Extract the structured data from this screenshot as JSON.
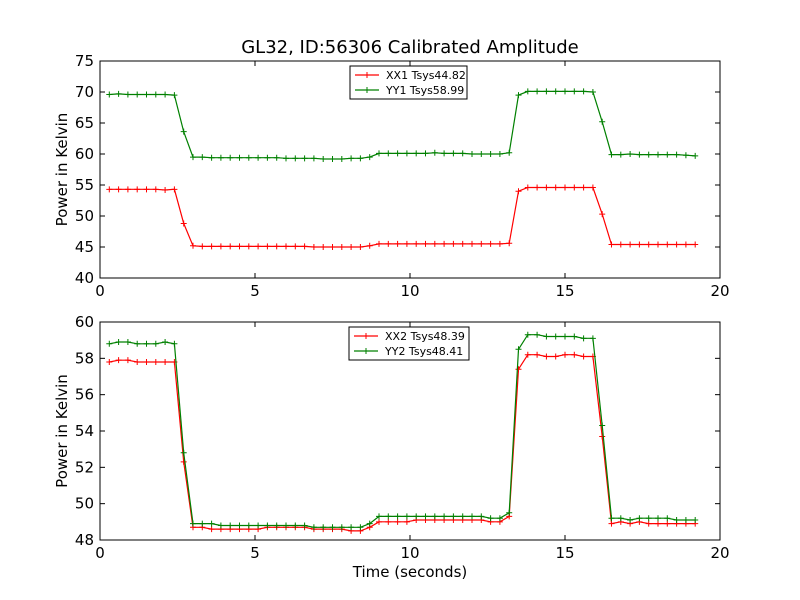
{
  "title": "GL32, ID:56306 Calibrated Amplitude",
  "colors": {
    "red": "#ff0000",
    "green": "#008000"
  },
  "chart_data": [
    {
      "type": "line",
      "xlabel": "",
      "ylabel": "Power in Kelvin",
      "xlim": [
        0,
        20
      ],
      "ylim": [
        40,
        75
      ],
      "xticks": [
        "0",
        "5",
        "10",
        "15",
        "20"
      ],
      "yticks": [
        "40",
        "45",
        "50",
        "55",
        "60",
        "65",
        "70",
        "75"
      ],
      "legend_position": "upper-center",
      "grid": false,
      "x": [
        0.3,
        0.6,
        0.9,
        1.2,
        1.5,
        1.8,
        2.1,
        2.4,
        2.7,
        3.0,
        3.3,
        3.6,
        3.9,
        4.2,
        4.5,
        4.8,
        5.1,
        5.4,
        5.7,
        6.0,
        6.3,
        6.6,
        6.9,
        7.2,
        7.5,
        7.8,
        8.1,
        8.4,
        8.7,
        9.0,
        9.3,
        9.6,
        9.9,
        10.2,
        10.5,
        10.8,
        11.1,
        11.4,
        11.7,
        12.0,
        12.3,
        12.6,
        12.9,
        13.2,
        13.5,
        13.8,
        14.1,
        14.4,
        14.7,
        15.0,
        15.3,
        15.6,
        15.9,
        16.2,
        16.5,
        16.8,
        17.1,
        17.4,
        17.7,
        18.0,
        18.3,
        18.6,
        18.9,
        19.2
      ],
      "series": [
        {
          "name": "XX1 Tsys44.82",
          "color": "#ff0000",
          "values": [
            54.3,
            54.3,
            54.3,
            54.3,
            54.3,
            54.3,
            54.2,
            54.3,
            48.8,
            45.2,
            45.1,
            45.1,
            45.1,
            45.1,
            45.1,
            45.1,
            45.1,
            45.1,
            45.1,
            45.1,
            45.1,
            45.1,
            45.0,
            45.0,
            45.0,
            45.0,
            45.0,
            45.0,
            45.2,
            45.5,
            45.5,
            45.5,
            45.5,
            45.5,
            45.5,
            45.5,
            45.5,
            45.5,
            45.5,
            45.5,
            45.5,
            45.5,
            45.5,
            45.6,
            54.0,
            54.6,
            54.6,
            54.6,
            54.6,
            54.6,
            54.6,
            54.6,
            54.6,
            50.3,
            45.4,
            45.4,
            45.4,
            45.4,
            45.4,
            45.4,
            45.4,
            45.4,
            45.4,
            45.4
          ]
        },
        {
          "name": "YY1 Tsys58.99",
          "color": "#008000",
          "values": [
            69.6,
            69.7,
            69.6,
            69.6,
            69.6,
            69.6,
            69.6,
            69.5,
            63.6,
            59.5,
            59.5,
            59.4,
            59.4,
            59.4,
            59.4,
            59.4,
            59.4,
            59.4,
            59.4,
            59.3,
            59.3,
            59.3,
            59.3,
            59.2,
            59.2,
            59.2,
            59.3,
            59.3,
            59.5,
            60.1,
            60.1,
            60.1,
            60.1,
            60.1,
            60.1,
            60.2,
            60.1,
            60.1,
            60.1,
            60.0,
            60.0,
            60.0,
            60.0,
            60.2,
            69.5,
            70.1,
            70.1,
            70.1,
            70.1,
            70.1,
            70.1,
            70.1,
            70.0,
            65.2,
            59.9,
            59.9,
            60.0,
            59.9,
            59.9,
            59.9,
            59.9,
            59.9,
            59.8,
            59.7
          ]
        }
      ]
    },
    {
      "type": "line",
      "xlabel": "Time (seconds)",
      "ylabel": "Power in Kelvin",
      "xlim": [
        0,
        20
      ],
      "ylim": [
        48,
        60
      ],
      "xticks": [
        "0",
        "5",
        "10",
        "15",
        "20"
      ],
      "yticks": [
        "48",
        "50",
        "52",
        "54",
        "56",
        "58",
        "60"
      ],
      "legend_position": "upper-center",
      "grid": false,
      "x": [
        0.3,
        0.6,
        0.9,
        1.2,
        1.5,
        1.8,
        2.1,
        2.4,
        2.7,
        3.0,
        3.3,
        3.6,
        3.9,
        4.2,
        4.5,
        4.8,
        5.1,
        5.4,
        5.7,
        6.0,
        6.3,
        6.6,
        6.9,
        7.2,
        7.5,
        7.8,
        8.1,
        8.4,
        8.7,
        9.0,
        9.3,
        9.6,
        9.9,
        10.2,
        10.5,
        10.8,
        11.1,
        11.4,
        11.7,
        12.0,
        12.3,
        12.6,
        12.9,
        13.2,
        13.5,
        13.8,
        14.1,
        14.4,
        14.7,
        15.0,
        15.3,
        15.6,
        15.9,
        16.2,
        16.5,
        16.8,
        17.1,
        17.4,
        17.7,
        18.0,
        18.3,
        18.6,
        18.9,
        19.2
      ],
      "series": [
        {
          "name": "XX2 Tsys48.39",
          "color": "#ff0000",
          "values": [
            57.8,
            57.9,
            57.9,
            57.8,
            57.8,
            57.8,
            57.8,
            57.8,
            52.3,
            48.7,
            48.7,
            48.6,
            48.6,
            48.6,
            48.6,
            48.6,
            48.6,
            48.7,
            48.7,
            48.7,
            48.7,
            48.7,
            48.6,
            48.6,
            48.6,
            48.6,
            48.5,
            48.5,
            48.7,
            49.0,
            49.0,
            49.0,
            49.0,
            49.1,
            49.1,
            49.1,
            49.1,
            49.1,
            49.1,
            49.1,
            49.1,
            49.0,
            49.0,
            49.3,
            57.4,
            58.2,
            58.2,
            58.1,
            58.1,
            58.2,
            58.2,
            58.1,
            58.1,
            53.7,
            48.9,
            49.0,
            48.9,
            49.0,
            48.9,
            48.9,
            48.9,
            48.9,
            48.9,
            48.9
          ]
        },
        {
          "name": "YY2 Tsys48.41",
          "color": "#008000",
          "values": [
            58.8,
            58.9,
            58.9,
            58.8,
            58.8,
            58.8,
            58.9,
            58.8,
            52.8,
            48.9,
            48.9,
            48.9,
            48.8,
            48.8,
            48.8,
            48.8,
            48.8,
            48.8,
            48.8,
            48.8,
            48.8,
            48.8,
            48.7,
            48.7,
            48.7,
            48.7,
            48.7,
            48.7,
            48.9,
            49.3,
            49.3,
            49.3,
            49.3,
            49.3,
            49.3,
            49.3,
            49.3,
            49.3,
            49.3,
            49.3,
            49.3,
            49.2,
            49.2,
            49.5,
            58.5,
            59.3,
            59.3,
            59.2,
            59.2,
            59.2,
            59.2,
            59.1,
            59.1,
            54.3,
            49.2,
            49.2,
            49.1,
            49.2,
            49.2,
            49.2,
            49.2,
            49.1,
            49.1,
            49.1
          ]
        }
      ]
    }
  ]
}
